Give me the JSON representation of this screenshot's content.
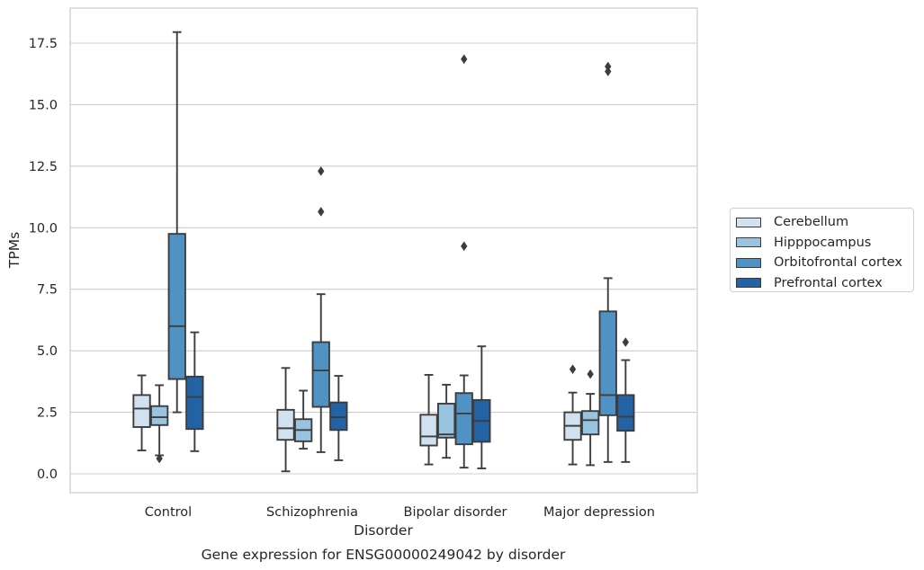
{
  "chart_data": {
    "type": "boxplot",
    "title": "Gene expression for ENSG00000249042 by disorder",
    "xlabel": "Disorder",
    "ylabel": "TPMs",
    "ylim": [
      -0.75,
      18.85
    ],
    "yticks": [
      0.0,
      2.5,
      5.0,
      7.5,
      10.0,
      12.5,
      15.0,
      17.5
    ],
    "ytick_labels": [
      "0.0",
      "2.5",
      "5.0",
      "7.5",
      "10.0",
      "12.5",
      "15.0",
      "17.5"
    ],
    "grid": "horizontal",
    "legend_position": "right",
    "categories": [
      "Control",
      "Schizophrenia",
      "Bipolar disorder",
      "Major depression"
    ],
    "series": [
      {
        "name": "Cerebellum",
        "color": "#d1e1f0",
        "boxes": [
          {
            "whislo": 0.95,
            "q1": 1.9,
            "med": 2.65,
            "q3": 3.2,
            "whishi": 4.0,
            "fliers": []
          },
          {
            "whislo": 0.1,
            "q1": 1.38,
            "med": 1.85,
            "q3": 2.6,
            "whishi": 4.3,
            "fliers": []
          },
          {
            "whislo": 0.38,
            "q1": 1.15,
            "med": 1.52,
            "q3": 2.4,
            "whishi": 4.02,
            "fliers": []
          },
          {
            "whislo": 0.38,
            "q1": 1.38,
            "med": 1.95,
            "q3": 2.5,
            "whishi": 3.3,
            "fliers": [
              4.25
            ]
          }
        ]
      },
      {
        "name": "Hipppocampus",
        "color": "#99c4df",
        "boxes": [
          {
            "whislo": 0.75,
            "q1": 1.98,
            "med": 2.3,
            "q3": 2.75,
            "whishi": 3.6,
            "fliers": [
              0.62
            ]
          },
          {
            "whislo": 1.02,
            "q1": 1.32,
            "med": 1.78,
            "q3": 2.22,
            "whishi": 3.38,
            "fliers": []
          },
          {
            "whislo": 0.65,
            "q1": 1.47,
            "med": 1.6,
            "q3": 2.85,
            "whishi": 3.62,
            "fliers": []
          },
          {
            "whislo": 0.35,
            "q1": 1.6,
            "med": 2.18,
            "q3": 2.55,
            "whishi": 3.25,
            "fliers": [
              4.05
            ]
          }
        ]
      },
      {
        "name": "Orbitofrontal cortex",
        "color": "#4f92c3",
        "boxes": [
          {
            "whislo": 2.5,
            "q1": 3.85,
            "med": 6.0,
            "q3": 9.75,
            "whishi": 17.95,
            "fliers": []
          },
          {
            "whislo": 0.88,
            "q1": 2.72,
            "med": 4.2,
            "q3": 5.35,
            "whishi": 7.3,
            "fliers": [
              10.65,
              12.3
            ]
          },
          {
            "whislo": 0.25,
            "q1": 1.2,
            "med": 2.45,
            "q3": 3.28,
            "whishi": 4.0,
            "fliers": [
              9.25,
              16.85
            ]
          },
          {
            "whislo": 0.48,
            "q1": 2.38,
            "med": 3.2,
            "q3": 6.6,
            "whishi": 7.95,
            "fliers": [
              16.35,
              16.55
            ]
          }
        ]
      },
      {
        "name": "Prefrontal cortex",
        "color": "#2362a3",
        "boxes": [
          {
            "whislo": 0.92,
            "q1": 1.82,
            "med": 3.12,
            "q3": 3.95,
            "whishi": 5.75,
            "fliers": []
          },
          {
            "whislo": 0.55,
            "q1": 1.78,
            "med": 2.3,
            "q3": 2.9,
            "whishi": 3.98,
            "fliers": []
          },
          {
            "whislo": 0.22,
            "q1": 1.3,
            "med": 2.15,
            "q3": 3.0,
            "whishi": 5.18,
            "fliers": []
          },
          {
            "whislo": 0.48,
            "q1": 1.75,
            "med": 2.32,
            "q3": 3.2,
            "whishi": 4.62,
            "fliers": [
              5.35
            ]
          }
        ]
      }
    ]
  }
}
